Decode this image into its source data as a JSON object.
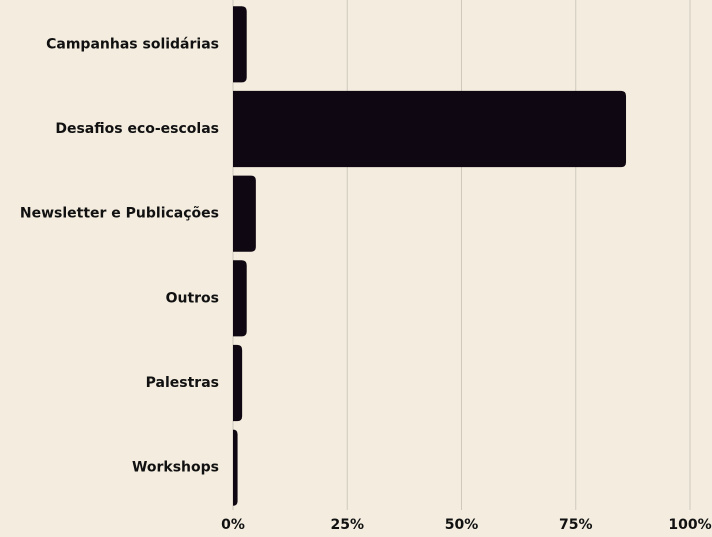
{
  "chart_data": {
    "type": "bar",
    "orientation": "horizontal",
    "categories": [
      "Campanhas solidárias",
      "Desafios eco-escolas",
      "Newsletter e Publicações",
      "Outros",
      "Palestras",
      "Workshops"
    ],
    "values": [
      3,
      86,
      5,
      3,
      2,
      1
    ],
    "color": "#0f0812",
    "xlim": [
      0,
      100
    ],
    "xticks": [
      {
        "value": 0,
        "label": "0%"
      },
      {
        "value": 25,
        "label": "25%"
      },
      {
        "value": 50,
        "label": "50%"
      },
      {
        "value": 75,
        "label": "75%"
      },
      {
        "value": 100,
        "label": "100%"
      }
    ],
    "grid": true
  }
}
